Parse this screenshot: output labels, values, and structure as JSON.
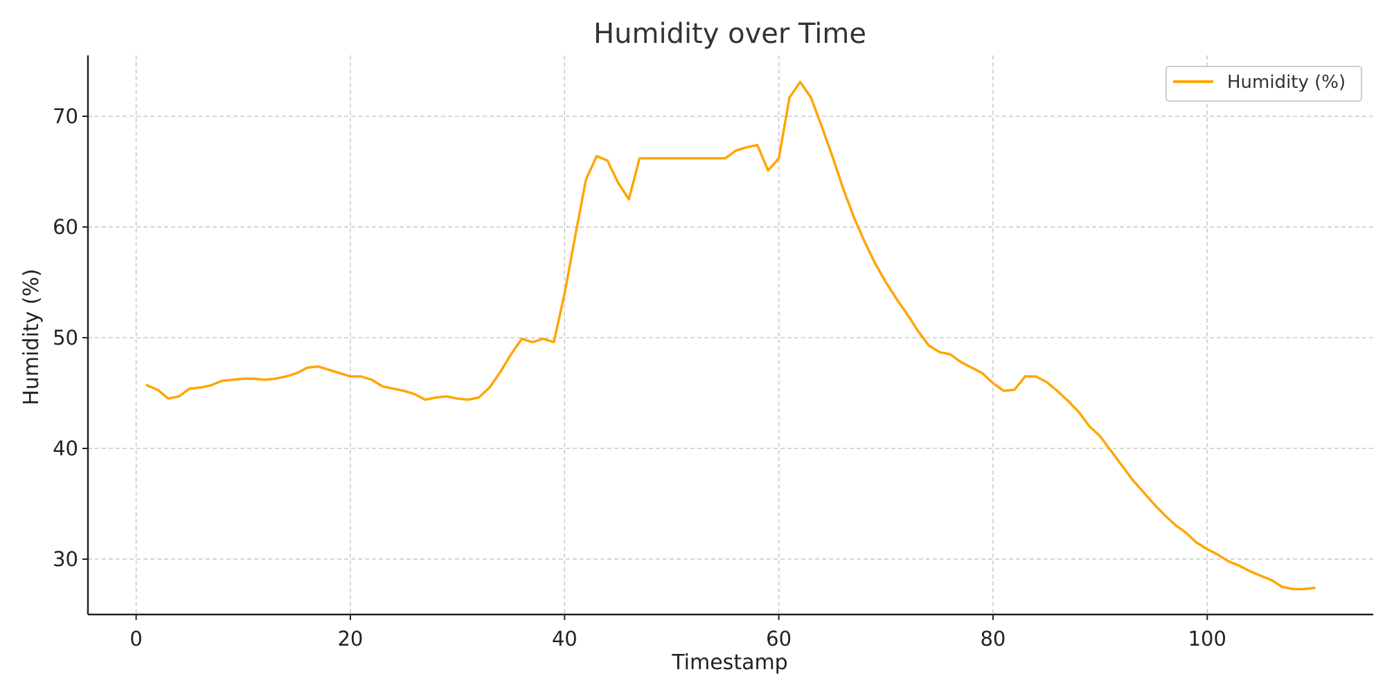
{
  "chart_data": {
    "type": "line",
    "title": "Humidity over Time",
    "xlabel": "Timestamp",
    "ylabel": "Humidity (%)",
    "xlim": [
      -4.5,
      115.5
    ],
    "ylim": [
      25,
      75.5
    ],
    "xticks": [
      0,
      20,
      40,
      60,
      80,
      100
    ],
    "yticks": [
      30,
      40,
      50,
      60,
      70
    ],
    "grid": true,
    "legend_position": "top-right",
    "series": [
      {
        "name": "Humidity (%)",
        "color": "#FFA500",
        "x": [
          1,
          2,
          3,
          4,
          5,
          6,
          7,
          8,
          9,
          10,
          11,
          12,
          13,
          14,
          15,
          16,
          17,
          18,
          19,
          20,
          21,
          22,
          23,
          24,
          25,
          26,
          27,
          28,
          29,
          30,
          31,
          32,
          33,
          34,
          35,
          36,
          37,
          38,
          39,
          40,
          41,
          42,
          43,
          44,
          45,
          46,
          47,
          48,
          49,
          50,
          51,
          52,
          53,
          54,
          55,
          56,
          57,
          58,
          59,
          60,
          61,
          62,
          63,
          64,
          65,
          66,
          67,
          68,
          69,
          70,
          71,
          72,
          73,
          74,
          75,
          76,
          77,
          78,
          79,
          80,
          81,
          82,
          83,
          84,
          85,
          86,
          87,
          88,
          89,
          90,
          91,
          92,
          93,
          94,
          95,
          96,
          97,
          98,
          99,
          100,
          101,
          102,
          103,
          104,
          105,
          106,
          107,
          108,
          109,
          110
        ],
        "values": [
          45.7,
          45.3,
          44.5,
          44.7,
          45.4,
          45.5,
          45.7,
          46.1,
          46.2,
          46.3,
          46.3,
          46.2,
          46.3,
          46.5,
          46.8,
          47.3,
          47.4,
          47.1,
          46.8,
          46.5,
          46.5,
          46.2,
          45.6,
          45.4,
          45.2,
          44.9,
          44.4,
          44.6,
          44.7,
          44.5,
          44.4,
          44.6,
          45.5,
          46.9,
          48.5,
          49.9,
          49.6,
          49.9,
          49.6,
          54.0,
          59.2,
          64.3,
          66.4,
          66.0,
          64.0,
          62.5,
          66.2,
          66.2,
          66.2,
          66.2,
          66.2,
          66.2,
          66.2,
          66.2,
          66.2,
          66.9,
          67.2,
          67.4,
          65.1,
          66.2,
          71.7,
          73.1,
          71.7,
          69.1,
          66.4,
          63.5,
          60.9,
          58.7,
          56.7,
          55.0,
          53.5,
          52.1,
          50.6,
          49.3,
          48.7,
          48.5,
          47.8,
          47.3,
          46.8,
          45.9,
          45.2,
          45.3,
          46.5,
          46.5,
          46.0,
          45.2,
          44.3,
          43.3,
          42.0,
          41.1,
          39.8,
          38.5,
          37.2,
          36.1,
          35.0,
          34.0,
          33.1,
          32.4,
          31.5,
          30.9,
          30.4,
          29.8,
          29.4,
          28.9,
          28.5,
          28.1,
          27.5,
          27.3,
          27.3,
          27.4
        ]
      }
    ]
  }
}
